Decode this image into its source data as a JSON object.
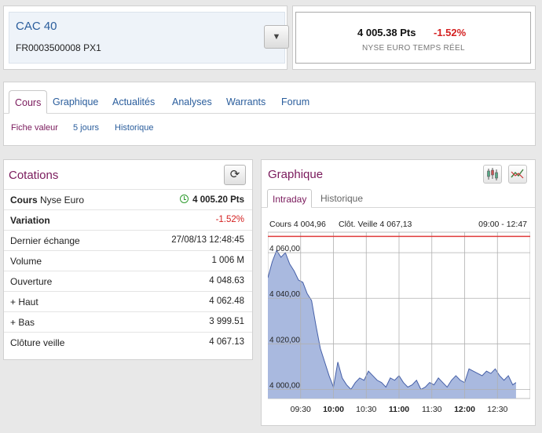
{
  "header": {
    "index_name": "CAC 40",
    "isin": "FR0003500008 PX1",
    "dropdown_icon": "triangle-down-icon",
    "price": "4 005.38 Pts",
    "variation": "-1.52%",
    "source": "NYSE EURO TEMPS RÉEL"
  },
  "nav": {
    "tabs": [
      "Cours",
      "Graphique",
      "Actualités",
      "Analyses",
      "Warrants",
      "Forum"
    ],
    "active_tab": "Cours",
    "subtabs": [
      "Fiche valeur",
      "5 jours",
      "Historique"
    ],
    "active_subtab": "Fiche valeur"
  },
  "cotations": {
    "title": "Cotations",
    "refresh_icon": "refresh-icon",
    "rows": [
      {
        "label_bold": "Cours",
        "label": " Nyse Euro",
        "value": "4 005.20 Pts"
      },
      {
        "label_bold": "Variation",
        "label": "",
        "value": "-1.52%"
      },
      {
        "label_bold": "",
        "label": "Dernier échange",
        "value": "27/08/13 12:48:45"
      },
      {
        "label_bold": "",
        "label": "Volume",
        "value": "1 006 M"
      },
      {
        "label_bold": "",
        "label": "Ouverture",
        "value": "4 048.63"
      },
      {
        "label_bold": "",
        "label": "+ Haut",
        "value": "4 062.48"
      },
      {
        "label_bold": "",
        "label": "+ Bas",
        "value": "3 999.51"
      },
      {
        "label_bold": "",
        "label": "Clôture veille",
        "value": "4 067.13"
      }
    ]
  },
  "graph": {
    "title": "Graphique",
    "tabs": [
      "Intraday",
      "Historique"
    ],
    "active_tab": "Intraday",
    "info_cours": "Cours 4 004,96",
    "info_cloture": "Clôt. Veille 4 067,13",
    "info_range": "09:00 - 12:47"
  },
  "chart_data": {
    "type": "area",
    "title": "",
    "xlabel": "",
    "ylabel": "",
    "ylim": [
      3996,
      4069
    ],
    "xlim": [
      "09:00",
      "13:00"
    ],
    "x_ticks": [
      "09:30",
      "10:00",
      "10:30",
      "11:00",
      "11:30",
      "12:00",
      "12:30"
    ],
    "x_ticks_bold": [
      "10:00",
      "11:00",
      "12:00"
    ],
    "y_ticks": [
      4000,
      4020,
      4040,
      4060
    ],
    "y_tick_labels": [
      "4 000,00",
      "4 020,00",
      "4 040,00",
      "4 060,00"
    ],
    "reference_line": {
      "value": 4067.13,
      "color": "#e03a3a"
    },
    "fill_color": "#a9b9df",
    "line_color": "#4660a8",
    "grid": true,
    "x": [
      "09:00",
      "09:04",
      "09:08",
      "09:12",
      "09:16",
      "09:20",
      "09:24",
      "09:28",
      "09:32",
      "09:36",
      "09:40",
      "09:44",
      "09:48",
      "09:52",
      "09:56",
      "10:00",
      "10:04",
      "10:08",
      "10:12",
      "10:16",
      "10:20",
      "10:24",
      "10:28",
      "10:32",
      "10:36",
      "10:40",
      "10:44",
      "10:48",
      "10:52",
      "10:56",
      "11:00",
      "11:04",
      "11:08",
      "11:12",
      "11:16",
      "11:20",
      "11:24",
      "11:28",
      "11:32",
      "11:36",
      "11:40",
      "11:44",
      "11:48",
      "11:52",
      "11:56",
      "12:00",
      "12:04",
      "12:08",
      "12:12",
      "12:16",
      "12:20",
      "12:24",
      "12:28",
      "12:32",
      "12:36",
      "12:40",
      "12:44",
      "12:47"
    ],
    "values": [
      4049,
      4056,
      4061,
      4058,
      4060,
      4055,
      4052,
      4048,
      4047,
      4042,
      4039,
      4028,
      4018,
      4012,
      4006,
      4001,
      4012,
      4005,
      4002,
      4000,
      4003,
      4005,
      4004,
      4008,
      4006,
      4004,
      4003,
      4001,
      4005,
      4004,
      4006,
      4003,
      4001,
      4002,
      4004,
      4000,
      4001,
      4003,
      4002,
      4005,
      4003,
      4001,
      4004,
      4006,
      4004,
      4003,
      4009,
      4008,
      4007,
      4006,
      4008,
      4007,
      4009,
      4006,
      4004,
      4006,
      4002,
      4003
    ]
  }
}
